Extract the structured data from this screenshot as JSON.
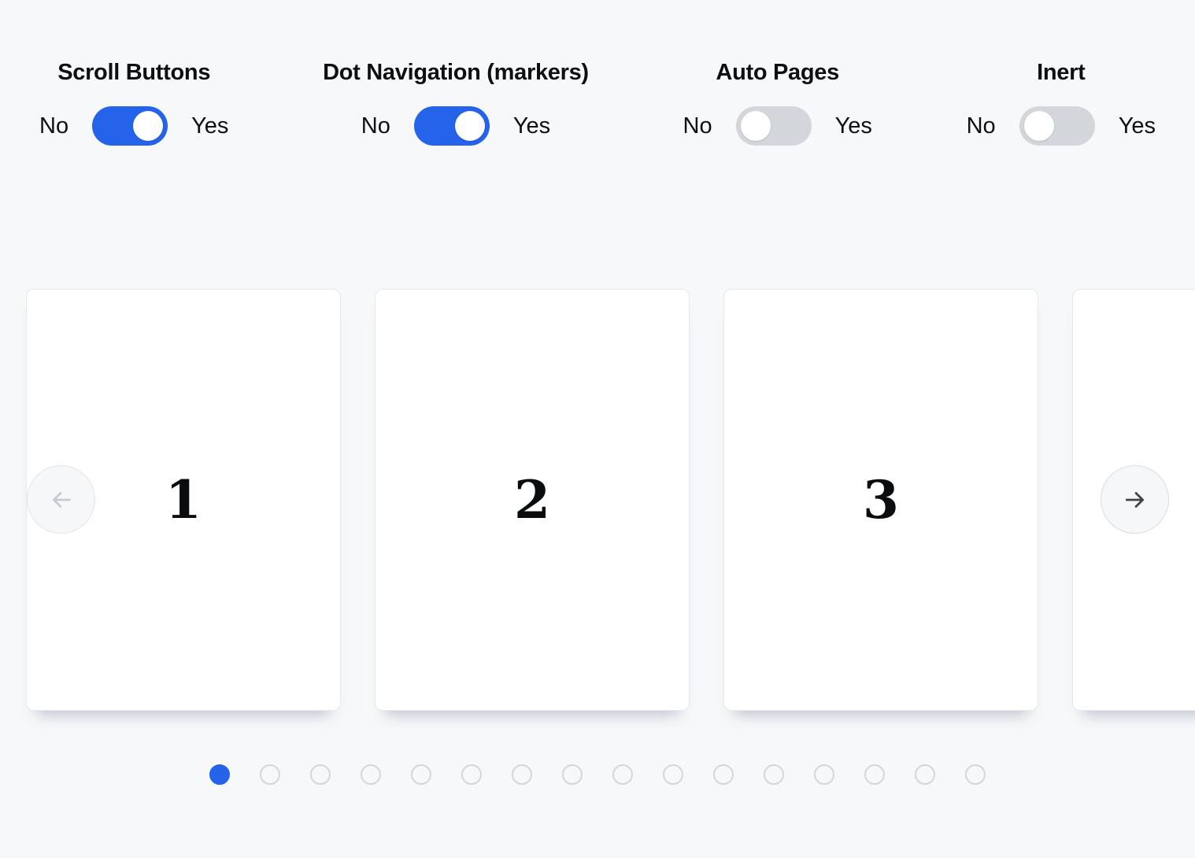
{
  "theme": {
    "accent_color": "#2563eb",
    "toggle_off_color": "#d3d7dc",
    "page_background": "#f7f8fa"
  },
  "controls": [
    {
      "label": "Scroll Buttons",
      "no_label": "No",
      "yes_label": "Yes",
      "value": "on"
    },
    {
      "label": "Dot Navigation (markers)",
      "no_label": "No",
      "yes_label": "Yes",
      "value": "on"
    },
    {
      "label": "Auto Pages",
      "no_label": "No",
      "yes_label": "Yes",
      "value": "off"
    },
    {
      "label": "Inert",
      "no_label": "No",
      "yes_label": "Yes",
      "value": "off"
    }
  ],
  "carousel": {
    "visible_slides": [
      {
        "number": "1"
      },
      {
        "number": "2"
      },
      {
        "number": "3"
      },
      {
        "number": ""
      }
    ],
    "prev_button": {
      "icon": "arrow-left-icon",
      "disabled": true
    },
    "next_button": {
      "icon": "arrow-right-icon",
      "disabled": false
    },
    "dot_navigation": {
      "total": 16,
      "active_index": 0
    }
  }
}
